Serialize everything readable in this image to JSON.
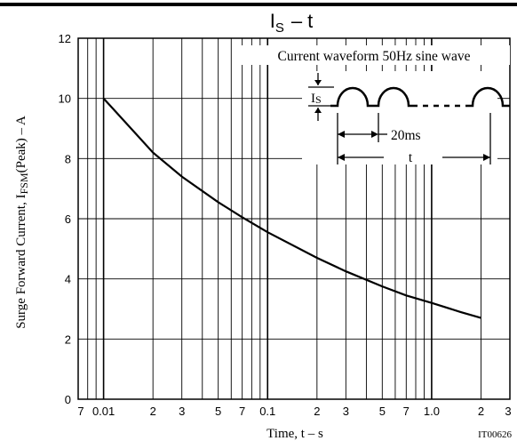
{
  "chart_data": {
    "type": "line",
    "title": "IS – t",
    "title_main": "I",
    "title_sub": "S",
    "title_rest": "– t",
    "xlabel": "Time,  t  –  s",
    "ylabel_prefix": "Surge Forward Current,  I",
    "ylabel_sub": "FSM",
    "ylabel_suffix": "(Peak)  –  A",
    "x_scale": "log",
    "xlim": [
      0.007,
      3
    ],
    "ylim": [
      0,
      12
    ],
    "grid": true,
    "y_ticks": [
      0,
      2,
      4,
      6,
      8,
      10,
      12
    ],
    "y_tick_labels": [
      "0",
      "2",
      "4",
      "6",
      "8",
      "10",
      "12"
    ],
    "x_ticks": [
      0.007,
      0.01,
      0.02,
      0.03,
      0.05,
      0.07,
      0.1,
      0.2,
      0.3,
      0.5,
      0.7,
      1.0,
      2,
      3
    ],
    "x_tick_labels": [
      "7",
      "0.01",
      "2",
      "3",
      "5",
      "7",
      "0.1",
      "2",
      "3",
      "5",
      "7",
      "1.0",
      "2",
      "3"
    ],
    "series": [
      {
        "x": [
          0.01,
          0.015,
          0.02,
          0.03,
          0.05,
          0.07,
          0.1,
          0.2,
          0.3,
          0.5,
          0.7,
          1.0,
          1.5,
          2.0
        ],
        "values": [
          10.0,
          8.95,
          8.2,
          7.4,
          6.55,
          6.05,
          5.55,
          4.7,
          4.25,
          3.75,
          3.45,
          3.2,
          2.9,
          2.7
        ]
      }
    ],
    "inset": {
      "caption": "Current waveform 50Hz sine wave",
      "is_label_main": "I",
      "is_label_sub": "S",
      "period_label": "20ms",
      "t_label": "t"
    },
    "footer_code": "IT00626"
  }
}
